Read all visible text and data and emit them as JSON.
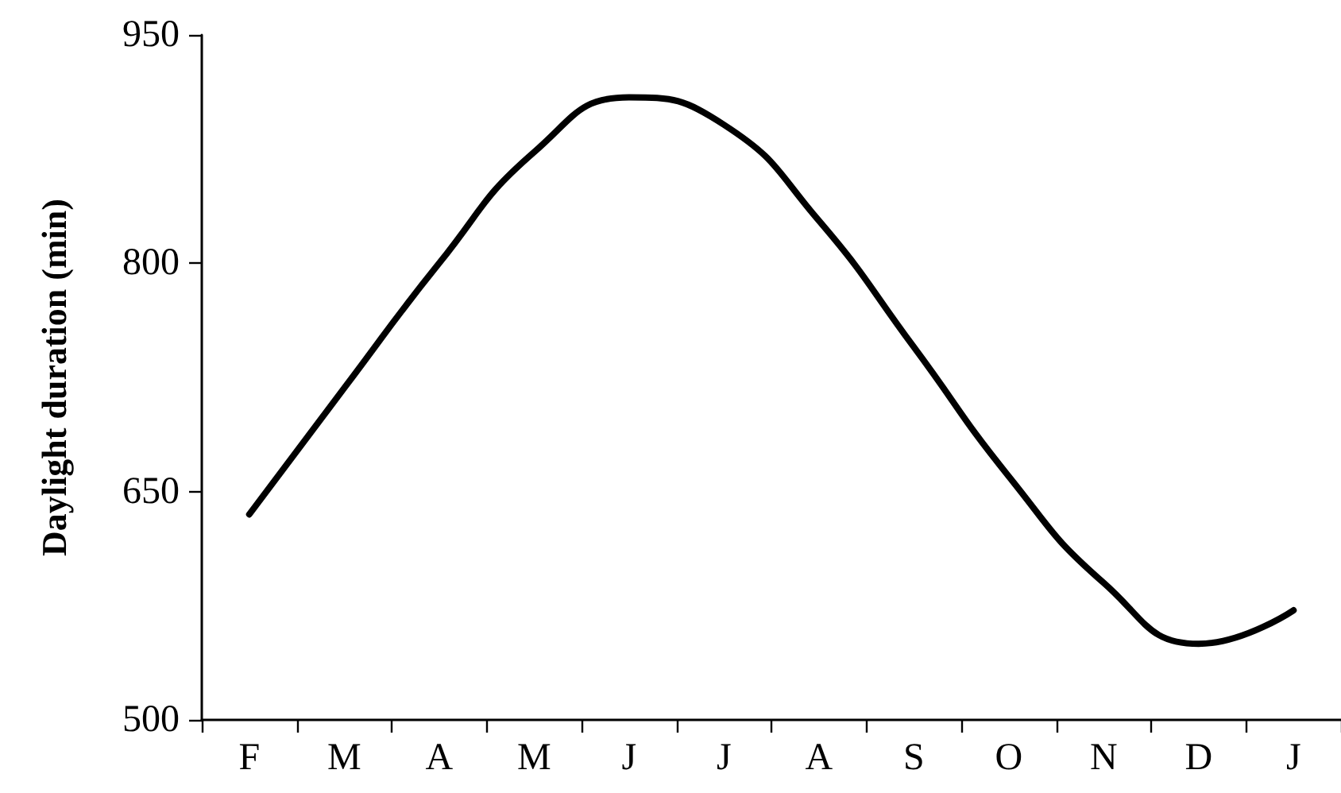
{
  "chart_data": {
    "type": "line",
    "ylabel": "Daylight duration (min)",
    "categories": [
      "F",
      "M",
      "A",
      "M",
      "J",
      "J",
      "A",
      "S",
      "O",
      "N",
      "D",
      "J"
    ],
    "series": [
      {
        "color": "#000000",
        "values": [
          635,
          718,
          800,
          873,
          909,
          891,
          828,
          745,
          660,
          590,
          550,
          572
        ]
      }
    ],
    "ylim": [
      500,
      950
    ],
    "yticks": [
      500,
      650,
      800,
      950
    ],
    "grid": false,
    "marker": "none",
    "line_style": "solid"
  }
}
